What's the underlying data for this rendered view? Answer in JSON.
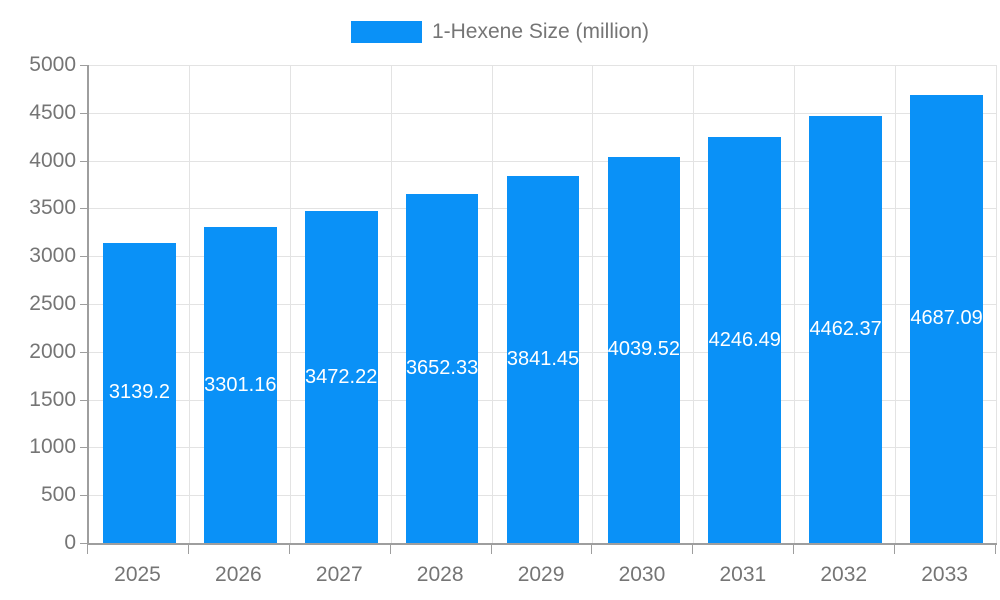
{
  "chart_data": {
    "type": "bar",
    "legend": "1-Hexene Size (million)",
    "categories": [
      "2025",
      "2026",
      "2027",
      "2028",
      "2029",
      "2030",
      "2031",
      "2032",
      "2033"
    ],
    "values": [
      3139.2,
      3301.16,
      3472.22,
      3652.33,
      3841.45,
      4039.52,
      4246.49,
      4462.37,
      4687.09
    ],
    "bar_labels": [
      "3139.2",
      "3301.16",
      "3472.22",
      "3652.33",
      "3841.45",
      "4039.52",
      "4246.49",
      "4462.37",
      "4687.09"
    ],
    "yticks": [
      0,
      500,
      1000,
      1500,
      2000,
      2500,
      3000,
      3500,
      4000,
      4500,
      5000
    ],
    "ylim": [
      0,
      5000
    ],
    "xlabel": "",
    "ylabel": "",
    "grid": "on",
    "legend_position": "top-center",
    "colors": {
      "bar": "#0a91f7",
      "axis_text": "#757575",
      "grid_line": "#e3e3e3",
      "axis_line": "#9e9e9e",
      "value_label": "#ffffff"
    }
  }
}
